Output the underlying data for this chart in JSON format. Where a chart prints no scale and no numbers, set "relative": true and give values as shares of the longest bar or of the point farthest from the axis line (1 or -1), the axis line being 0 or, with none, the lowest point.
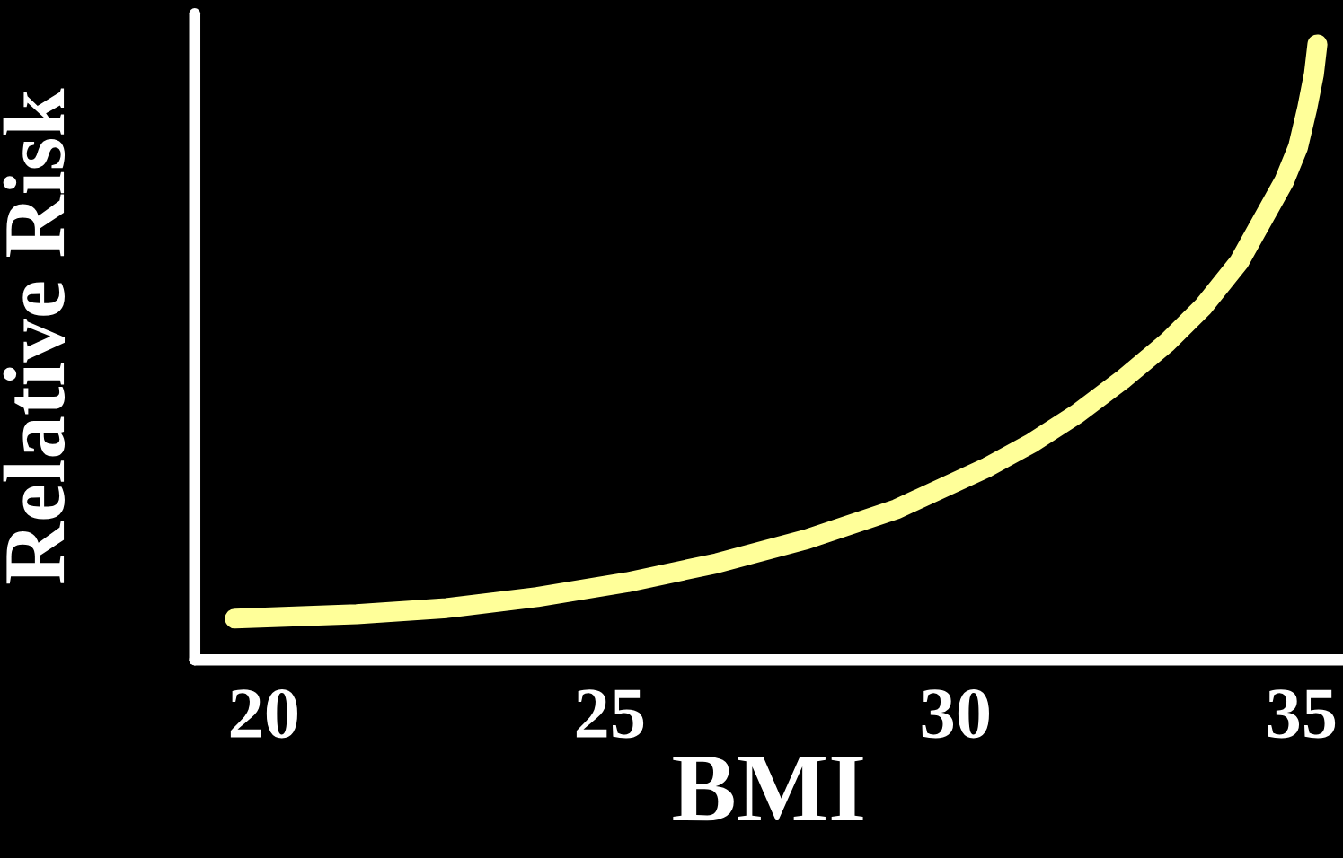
{
  "chart_data": {
    "type": "line",
    "xlabel": "BMI",
    "ylabel": "Relative Risk",
    "relative": true,
    "x": [
      19.58,
      21.34,
      22.64,
      23.95,
      25.25,
      26.55,
      27.85,
      29.15,
      30.46,
      31.11,
      31.76,
      32.41,
      33.06,
      33.58,
      34.1,
      34.75,
      34.95,
      35.08,
      35.18,
      35.23
    ],
    "series": [
      {
        "color": "#ffff99",
        "values": [
          0.067,
          0.074,
          0.084,
          0.102,
          0.126,
          0.157,
          0.196,
          0.245,
          0.313,
          0.353,
          0.4,
          0.455,
          0.516,
          0.574,
          0.647,
          0.778,
          0.833,
          0.895,
          0.952,
          1.0
        ]
      }
    ],
    "xlim": [
      19.0,
      35.6
    ],
    "xticks": [
      20,
      25,
      30,
      35
    ],
    "tick_labels": "x",
    "grid": false
  }
}
